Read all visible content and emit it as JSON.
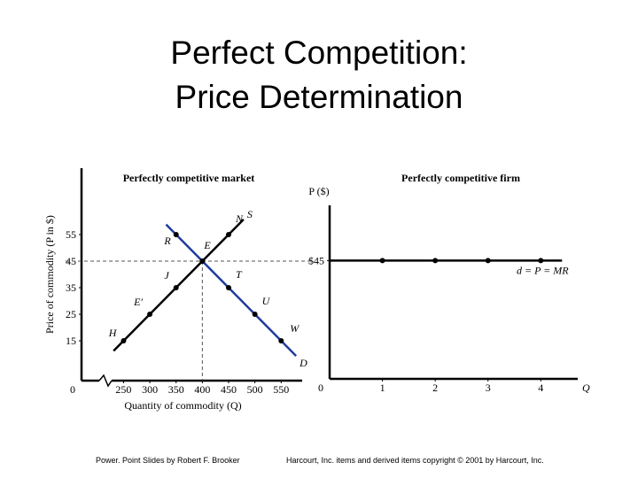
{
  "slide": {
    "title_lines": [
      "Perfect Competition:",
      "Price Determination"
    ],
    "footer_left": "Power. Point Slides by Robert F. Brooker",
    "footer_right": "Harcourt, Inc. items and derived items copyright © 2001 by Harcourt, Inc."
  },
  "chart_data": [
    {
      "type": "line",
      "title": "Perfectly competitive market",
      "y_label": "Price of commodity (P in $)",
      "x_label": "Quantity of commodity (Q)",
      "origin_label": "0",
      "axis_break": true,
      "xlim": [
        170,
        590
      ],
      "xticks": [
        250,
        300,
        350,
        400,
        450,
        500,
        550
      ],
      "ylim": [
        0,
        80
      ],
      "yticks": [
        15,
        25,
        35,
        45,
        55
      ],
      "equilibrium_guides": true,
      "series": [
        {
          "name": "S",
          "color": "#000000",
          "x": [
            250,
            300,
            350,
            400,
            450
          ],
          "values": [
            15,
            25,
            35,
            45,
            55
          ],
          "point_labels": [
            "H",
            "E′",
            "J",
            "E",
            "N"
          ]
        },
        {
          "name": "D",
          "color": "#1f3c9e",
          "x": [
            350,
            400,
            450,
            500,
            550
          ],
          "values": [
            55,
            45,
            35,
            25,
            15
          ],
          "point_labels": [
            "R",
            null,
            "T",
            "U",
            "W"
          ]
        }
      ]
    },
    {
      "type": "line",
      "title": "Perfectly competitive firm",
      "y_label": "P ($)",
      "x_label": "Q",
      "origin_label": "0",
      "xlim": [
        0,
        4.7
      ],
      "xticks": [
        1,
        2,
        3,
        4
      ],
      "ylim": [
        0,
        66
      ],
      "yticks": [
        {
          "value": 45,
          "label": "$45"
        }
      ],
      "series": [
        {
          "name": "d = P = MR",
          "color": "#000000",
          "x": [
            1,
            2,
            3,
            4
          ],
          "values": [
            45,
            45,
            45,
            45
          ]
        }
      ]
    }
  ]
}
